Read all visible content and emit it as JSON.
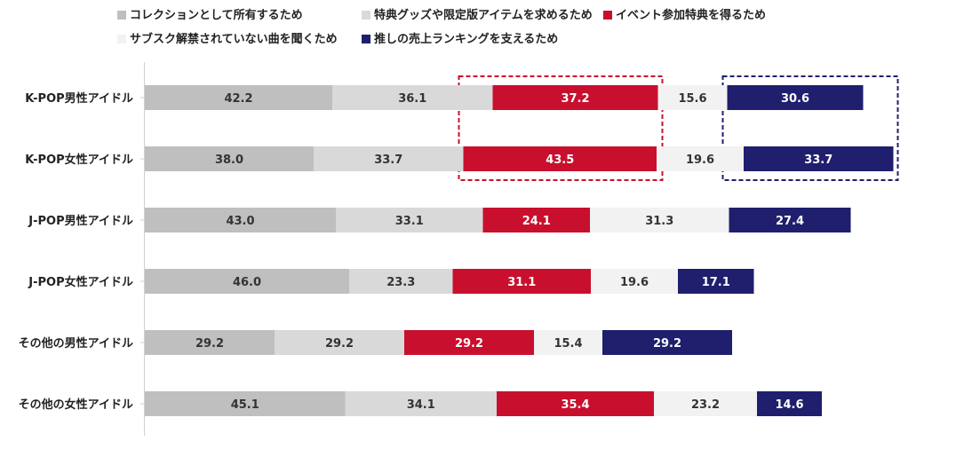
{
  "chart_data": {
    "type": "bar",
    "stacked": true,
    "orientation": "horizontal",
    "title": "",
    "xlabel": "",
    "ylabel": "",
    "legend_position": "top",
    "categories": [
      "K-POP男性アイドル",
      "K-POP女性アイドル",
      "J-POP男性アイドル",
      "J-POP女性アイドル",
      "その他の男性アイドル",
      "その他の女性アイドル"
    ],
    "series": [
      {
        "name": "コレクションとして所有するため",
        "color": "#bfbfbf",
        "label_color": "#333333",
        "values": [
          42.2,
          38.0,
          43.0,
          46.0,
          29.2,
          45.1
        ]
      },
      {
        "name": "特典グッズや限定版アイテムを求めるため",
        "color": "#d9d9d9",
        "label_color": "#333333",
        "values": [
          36.1,
          33.7,
          33.1,
          23.3,
          29.2,
          34.1
        ]
      },
      {
        "name": "イベント参加特典を得るため",
        "color": "#c8102e",
        "label_color": "#ffffff",
        "values": [
          37.2,
          43.5,
          24.1,
          31.1,
          29.2,
          35.4
        ]
      },
      {
        "name": "サブスク解禁されていない曲を聞くため",
        "color": "#f2f2f2",
        "label_color": "#333333",
        "values": [
          15.6,
          19.6,
          31.3,
          19.6,
          15.4,
          23.2
        ]
      },
      {
        "name": "推しの売上ランキングを支えるため",
        "color": "#1f1f6e",
        "label_color": "#ffffff",
        "values": [
          30.6,
          33.7,
          27.4,
          17.1,
          29.2,
          14.6
        ]
      }
    ],
    "highlights": [
      {
        "series": "イベント参加特典を得るため",
        "categories": [
          "K-POP男性アイドル",
          "K-POP女性アイドル"
        ],
        "color": "#c8102e",
        "style": "dashed"
      },
      {
        "series": "推しの売上ランキングを支えるため",
        "categories": [
          "K-POP男性アイドル",
          "K-POP女性アイドル"
        ],
        "color": "#1f1f6e",
        "style": "dashed"
      }
    ]
  }
}
